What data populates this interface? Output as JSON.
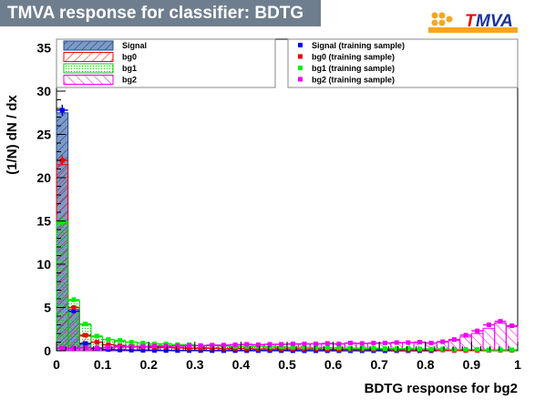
{
  "header": {
    "title": "TMVA response for classifier: BDTG"
  },
  "logo": {
    "text": "TMVA"
  },
  "chart_data": {
    "type": "histogram",
    "title": "TMVA response for classifier: BDTG",
    "xlabel": "BDTG response for bg2",
    "ylabel": "(1/N) dN / dx",
    "xlim": [
      0,
      1
    ],
    "ylim": [
      0,
      36
    ],
    "xticks": [
      0,
      0.1,
      0.2,
      0.3,
      0.4,
      0.5,
      0.6,
      0.7,
      0.8,
      0.9,
      1
    ],
    "xtick_labels": [
      "0",
      "0.1",
      "0.2",
      "0.3",
      "0.4",
      "0.5",
      "0.6",
      "0.7",
      "0.8",
      "0.9",
      "1"
    ],
    "yticks": [
      0,
      5,
      10,
      15,
      20,
      25,
      30,
      35
    ],
    "ytick_labels": [
      "0",
      "5",
      "10",
      "15",
      "20",
      "25",
      "30",
      "35"
    ],
    "bin_width": 0.025,
    "bin_centers": [
      0.0125,
      0.0375,
      0.0625,
      0.0875,
      0.1125,
      0.1375,
      0.1625,
      0.1875,
      0.2125,
      0.2375,
      0.2625,
      0.2875,
      0.3125,
      0.3375,
      0.3625,
      0.3875,
      0.4125,
      0.4375,
      0.4625,
      0.4875,
      0.5125,
      0.5375,
      0.5625,
      0.5875,
      0.6125,
      0.6375,
      0.6625,
      0.6875,
      0.7125,
      0.7375,
      0.7625,
      0.7875,
      0.8125,
      0.8375,
      0.8625,
      0.8875,
      0.9125,
      0.9375,
      0.9625,
      0.9875
    ],
    "series": [
      {
        "name": "Signal",
        "kind": "test",
        "color": "#5a86c0",
        "values": [
          27.5,
          4.5,
          0.8,
          0.3,
          0.15,
          0.1,
          0.08,
          0.05,
          0.05,
          0.04,
          0.03,
          0.03,
          0.03,
          0.02,
          0.02,
          0.02,
          0.02,
          0.02,
          0.02,
          0.02,
          0.01,
          0.01,
          0.01,
          0.01,
          0.01,
          0.01,
          0.01,
          0.01,
          0.01,
          0.01,
          0.01,
          0.01,
          0.01,
          0,
          0,
          0,
          0,
          0,
          0,
          0
        ]
      },
      {
        "name": "bg0",
        "kind": "test",
        "color": "#ff0000",
        "values": [
          21.5,
          4.8,
          1.7,
          1.0,
          0.7,
          0.6,
          0.5,
          0.45,
          0.4,
          0.4,
          0.35,
          0.3,
          0.3,
          0.3,
          0.25,
          0.25,
          0.25,
          0.2,
          0.2,
          0.2,
          0.2,
          0.2,
          0.2,
          0.15,
          0.15,
          0.15,
          0.15,
          0.15,
          0.15,
          0.1,
          0.1,
          0.1,
          0.1,
          0.1,
          0.05,
          0.05,
          0.05,
          0.05,
          0.05,
          0.05
        ]
      },
      {
        "name": "bg1",
        "kind": "test",
        "color": "#00dd00",
        "values": [
          14.8,
          5.8,
          3.0,
          1.6,
          1.3,
          1.1,
          1.0,
          0.9,
          0.8,
          0.8,
          0.7,
          0.7,
          0.6,
          0.6,
          0.55,
          0.5,
          0.5,
          0.5,
          0.45,
          0.45,
          0.4,
          0.4,
          0.35,
          0.35,
          0.35,
          0.3,
          0.3,
          0.3,
          0.25,
          0.25,
          0.25,
          0.2,
          0.2,
          0.2,
          0.15,
          0.15,
          0.15,
          0.1,
          0.1,
          0.1
        ]
      },
      {
        "name": "bg2",
        "kind": "test",
        "color": "#ee00ee",
        "values": [
          0.3,
          0.3,
          0.35,
          0.35,
          0.4,
          0.45,
          0.45,
          0.5,
          0.5,
          0.55,
          0.55,
          0.6,
          0.6,
          0.65,
          0.65,
          0.7,
          0.7,
          0.7,
          0.75,
          0.75,
          0.75,
          0.8,
          0.8,
          0.8,
          0.8,
          0.85,
          0.85,
          0.85,
          0.9,
          0.9,
          0.95,
          0.95,
          0.9,
          1.0,
          1.2,
          1.6,
          2.0,
          2.6,
          3.2,
          2.8
        ]
      },
      {
        "name": "Signal (training sample)",
        "kind": "train",
        "color": "#0000ee",
        "values": [
          27.8,
          4.6,
          0.85,
          0.3,
          0.15,
          0.1,
          0.08,
          0.06,
          0.05,
          0.04,
          0.03,
          0.03,
          0.03,
          0.02,
          0.02,
          0.02,
          0.02,
          0.02,
          0.02,
          0.02,
          0.01,
          0.01,
          0.01,
          0.01,
          0.01,
          0.01,
          0.01,
          0.01,
          0.01,
          0.01,
          0.01,
          0.01,
          0.01,
          0,
          0,
          0,
          0,
          0,
          0,
          0
        ]
      },
      {
        "name": "bg0 (training sample)",
        "kind": "train",
        "color": "#ee0000",
        "values": [
          22.0,
          5.0,
          1.8,
          1.0,
          0.7,
          0.6,
          0.5,
          0.45,
          0.4,
          0.4,
          0.35,
          0.3,
          0.3,
          0.3,
          0.25,
          0.25,
          0.25,
          0.2,
          0.2,
          0.2,
          0.2,
          0.2,
          0.2,
          0.15,
          0.15,
          0.15,
          0.15,
          0.15,
          0.15,
          0.1,
          0.1,
          0.1,
          0.1,
          0.1,
          0.05,
          0.05,
          0.05,
          0.05,
          0.05,
          0.05
        ]
      },
      {
        "name": "bg1 (training sample)",
        "kind": "train",
        "color": "#00ee00",
        "values": [
          14.9,
          5.9,
          3.1,
          1.7,
          1.3,
          1.2,
          1.0,
          0.9,
          0.8,
          0.8,
          0.7,
          0.7,
          0.6,
          0.6,
          0.55,
          0.5,
          0.5,
          0.5,
          0.45,
          0.45,
          0.4,
          0.4,
          0.35,
          0.35,
          0.35,
          0.3,
          0.3,
          0.3,
          0.25,
          0.25,
          0.25,
          0.2,
          0.2,
          0.2,
          0.15,
          0.15,
          0.15,
          0.1,
          0.1,
          0.1
        ]
      },
      {
        "name": "bg2 (training sample)",
        "kind": "train",
        "color": "#ee00ee",
        "values": [
          0.3,
          0.3,
          0.35,
          0.35,
          0.4,
          0.45,
          0.45,
          0.5,
          0.55,
          0.55,
          0.55,
          0.6,
          0.6,
          0.65,
          0.65,
          0.7,
          0.75,
          0.7,
          0.75,
          0.75,
          0.8,
          0.8,
          0.8,
          0.85,
          0.8,
          0.9,
          0.85,
          0.9,
          0.9,
          0.95,
          0.95,
          1.0,
          0.9,
          1.05,
          1.3,
          1.8,
          2.3,
          3.0,
          3.4,
          2.9
        ]
      }
    ],
    "legend": {
      "placement": "top",
      "entries": [
        "Signal",
        "bg0",
        "bg1",
        "bg2",
        "Signal (training sample)",
        "bg0 (training sample)",
        "bg1 (training sample)",
        "bg2 (training sample)"
      ]
    },
    "grid": false
  }
}
